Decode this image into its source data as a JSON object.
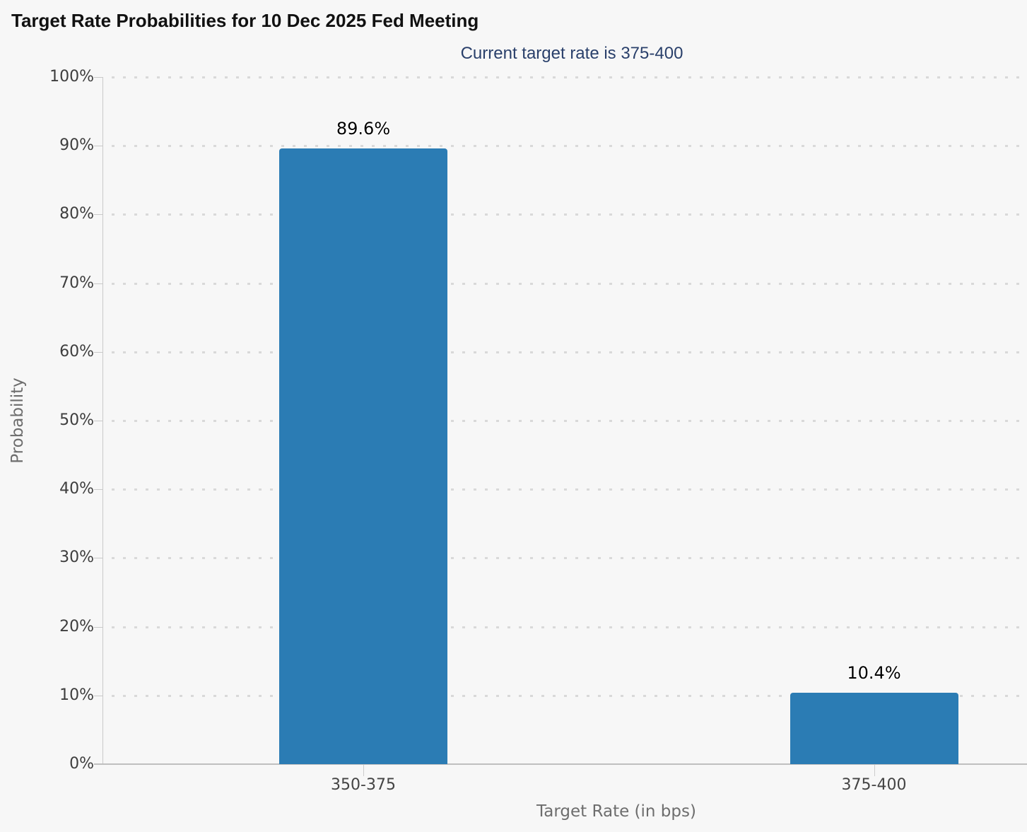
{
  "title": "Target Rate Probabilities for 10 Dec 2025 Fed Meeting",
  "subtitle": "Current target rate is 375-400",
  "colors": {
    "background": "#f7f7f7",
    "bar": "#2b7cb4",
    "title": "#111111",
    "subtitle": "#2a406b",
    "axis_line": "#c9c9c9",
    "grid_dot": "#d9d9d9",
    "tick_label": "#3e3e3e",
    "axis_title": "#6d6d6d",
    "data_label": "#000000"
  },
  "chart_data": {
    "type": "bar",
    "title": "Target Rate Probabilities for 10 Dec 2025 Fed Meeting",
    "subtitle": "Current target rate is 375-400",
    "categories": [
      "350-375",
      "375-400"
    ],
    "values": [
      89.6,
      10.4
    ],
    "data_labels": [
      "89.6%",
      "10.4%"
    ],
    "xlabel": "Target Rate (in bps)",
    "ylabel": "Probability",
    "ylim": [
      0,
      100
    ],
    "ytick_step": 10,
    "ytick_labels": [
      "0%",
      "10%",
      "20%",
      "30%",
      "40%",
      "50%",
      "60%",
      "70%",
      "80%",
      "90%",
      "100%"
    ],
    "grid": "horizontal-dotted",
    "legend": "none"
  }
}
